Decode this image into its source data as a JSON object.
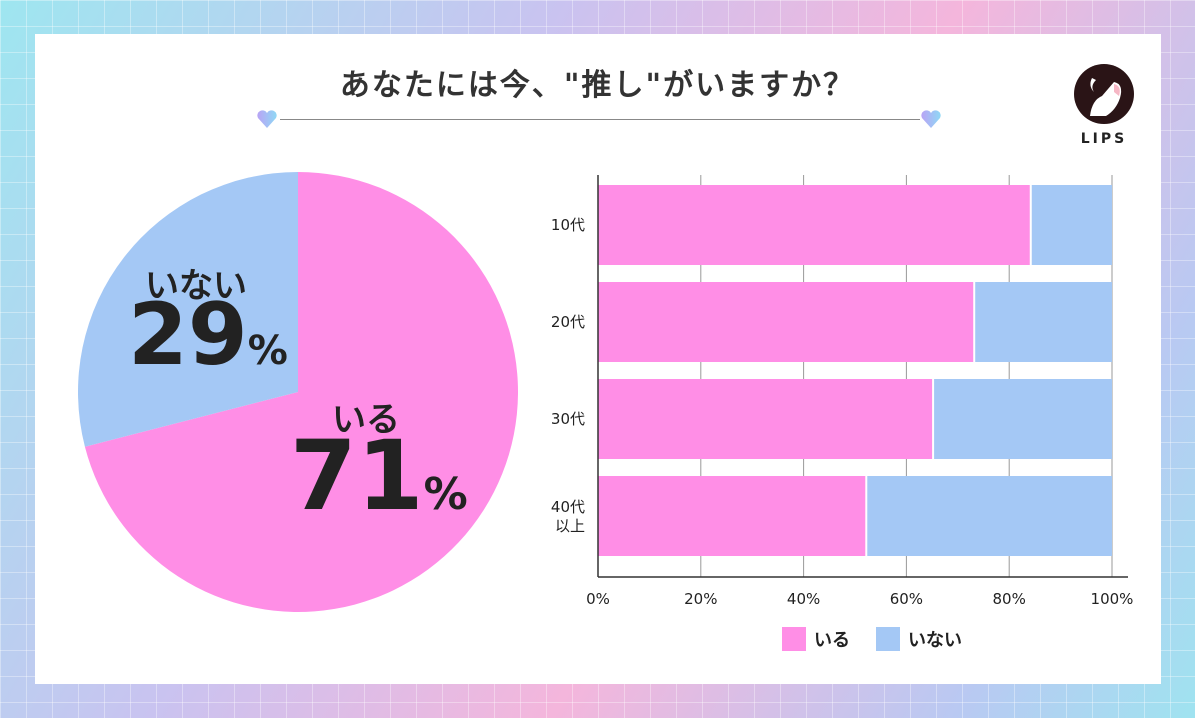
{
  "title": "あなたには今、\"推し\"がいますか？",
  "logo": {
    "text": "LIPS"
  },
  "colors": {
    "iru": "#ff8ee6",
    "inai": "#a4c8f5"
  },
  "chart_data": [
    {
      "type": "pie",
      "slices": [
        {
          "name": "いる",
          "value": 71,
          "label": "71",
          "unit": "%"
        },
        {
          "name": "いない",
          "value": 29,
          "label": "29",
          "unit": "%"
        }
      ]
    },
    {
      "type": "bar",
      "orientation": "horizontal",
      "stacked": true,
      "categories": [
        "10代",
        "20代",
        "30代",
        "40代\n以上"
      ],
      "series": [
        {
          "name": "いる",
          "values": [
            84,
            73,
            65,
            52
          ]
        },
        {
          "name": "いない",
          "values": [
            16,
            27,
            35,
            48
          ]
        }
      ],
      "xlim": [
        0,
        100
      ],
      "xticks": [
        "0%",
        "20%",
        "40%",
        "60%",
        "80%",
        "100%"
      ],
      "grid": true,
      "legend": "bottom"
    }
  ]
}
